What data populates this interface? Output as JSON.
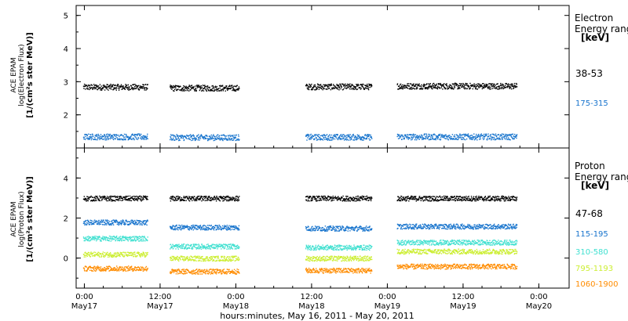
{
  "chart_data": {
    "type": "scatter",
    "xlabel": "hours:minutes, May 16, 2011 - May 20, 2011",
    "x_ticks": [
      {
        "hours": 0,
        "time": "0:00",
        "date": "May17"
      },
      {
        "hours": 12,
        "time": "12:00",
        "date": "May17"
      },
      {
        "hours": 24,
        "time": "0:00",
        "date": "May18"
      },
      {
        "hours": 36,
        "time": "12:00",
        "date": "May18"
      },
      {
        "hours": 48,
        "time": "0:00",
        "date": "May19"
      },
      {
        "hours": 60,
        "time": "12:00",
        "date": "May19"
      },
      {
        "hours": 72,
        "time": "0:00",
        "date": "May20"
      }
    ],
    "panels": [
      {
        "name": "electron",
        "ylabel_prefix": "[",
        "ylabel_units": "1/(cm²s ster MeV)",
        "ylabel_suffix": "]",
        "ylabel_quantity": "log(Electron Flux)",
        "ylabel_instrument": "ACE EPAM",
        "ylim": [
          1,
          5.3
        ],
        "yticks": [
          2,
          3,
          4,
          5
        ],
        "legend_title": [
          "Electron",
          "Energy range"
        ],
        "legend_unit": "[keV]",
        "series": [
          {
            "name": "38-53",
            "color": "#000000",
            "segments": [
              [
                -0.2,
                10.0,
                2.85
              ],
              [
                13.5,
                24.5,
                2.82
              ],
              [
                35.0,
                45.5,
                2.86
              ],
              [
                49.5,
                68.5,
                2.88
              ]
            ]
          },
          {
            "name": "175-315",
            "color": "#1874cd",
            "segments": [
              [
                -0.2,
                10.0,
                1.35
              ],
              [
                13.5,
                24.5,
                1.33
              ],
              [
                35.0,
                45.5,
                1.34
              ],
              [
                49.5,
                68.5,
                1.35
              ]
            ]
          }
        ]
      },
      {
        "name": "proton",
        "ylabel_prefix": "[",
        "ylabel_units": "1/(cm²s ster MeV)",
        "ylabel_suffix": "]",
        "ylabel_quantity": "log(Proton Flux)",
        "ylabel_instrument": "ACE EPAM",
        "ylim": [
          -1.5,
          5.5
        ],
        "yticks": [
          0,
          2,
          4
        ],
        "legend_title": [
          "Proton",
          "Energy range"
        ],
        "legend_unit": "[keV]",
        "series": [
          {
            "name": "47-68",
            "color": "#000000",
            "segments": [
              [
                -0.2,
                10.0,
                3.0
              ],
              [
                13.5,
                24.5,
                3.0
              ],
              [
                35.0,
                45.5,
                3.0
              ],
              [
                49.5,
                68.5,
                3.0
              ]
            ]
          },
          {
            "name": "115-195",
            "color": "#1874cd",
            "segments": [
              [
                -0.2,
                10.0,
                1.8
              ],
              [
                13.5,
                24.5,
                1.55
              ],
              [
                35.0,
                45.5,
                1.5
              ],
              [
                49.5,
                68.5,
                1.6
              ]
            ]
          },
          {
            "name": "310-580",
            "color": "#40e0d0",
            "segments": [
              [
                -0.2,
                10.0,
                1.0
              ],
              [
                13.5,
                24.5,
                0.6
              ],
              [
                35.0,
                45.5,
                0.55
              ],
              [
                49.5,
                68.5,
                0.8
              ]
            ]
          },
          {
            "name": "795-1193",
            "color": "#ccee33",
            "segments": [
              [
                -0.2,
                10.0,
                0.2
              ],
              [
                13.5,
                24.5,
                0.0
              ],
              [
                35.0,
                45.5,
                0.0
              ],
              [
                49.5,
                68.5,
                0.35
              ]
            ]
          },
          {
            "name": "1060-1900",
            "color": "#ff8c00",
            "segments": [
              [
                -0.2,
                10.0,
                -0.5
              ],
              [
                13.5,
                24.5,
                -0.65
              ],
              [
                35.0,
                45.5,
                -0.6
              ],
              [
                49.5,
                68.5,
                -0.4
              ]
            ]
          }
        ]
      }
    ]
  }
}
